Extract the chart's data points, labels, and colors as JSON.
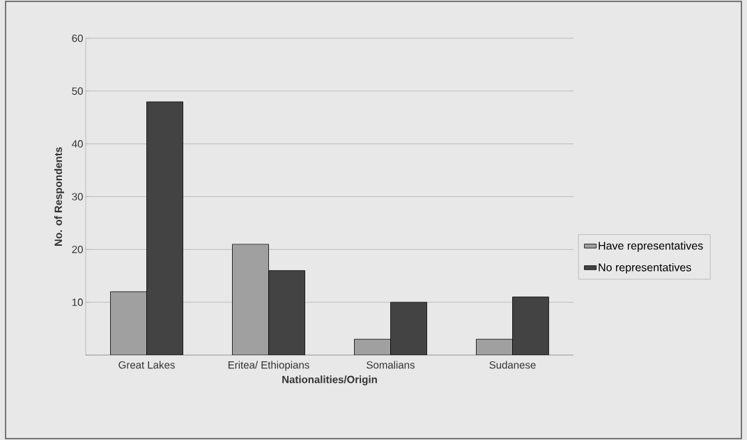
{
  "chart_data": {
    "type": "bar",
    "xlabel": "Nationalities/Origin",
    "ylabel": "No. of Respondents",
    "categories": [
      "Great Lakes",
      "Eritea/ Ethiopians",
      "Somalians",
      "Sudanese"
    ],
    "series": [
      {
        "name": "Have representatives",
        "color": "#a0a0a0",
        "values": [
          12,
          21,
          3,
          3
        ]
      },
      {
        "name": "No representatives",
        "color": "#434343",
        "values": [
          48,
          16,
          10,
          11
        ]
      }
    ],
    "ylim": [
      0,
      60
    ],
    "yticks": [
      {
        "value": 0,
        "label": null
      },
      10,
      20,
      30,
      40,
      50,
      60
    ],
    "grid": "y",
    "legend": "right"
  }
}
